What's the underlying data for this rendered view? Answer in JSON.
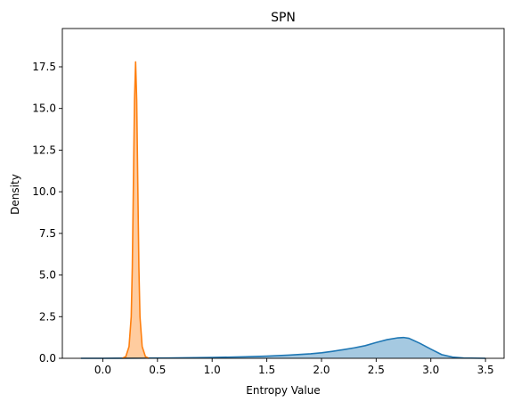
{
  "chart_data": {
    "type": "area",
    "title": "SPN",
    "xlabel": "Entropy Value",
    "ylabel": "Density",
    "xlim": [
      -0.37,
      3.67
    ],
    "ylim": [
      0,
      19.8
    ],
    "xticks": [
      0.0,
      0.5,
      1.0,
      1.5,
      2.0,
      2.5,
      3.0,
      3.5
    ],
    "xtick_labels": [
      "0.0",
      "0.5",
      "1.0",
      "1.5",
      "2.0",
      "2.5",
      "3.0",
      "3.5"
    ],
    "yticks": [
      0.0,
      2.5,
      5.0,
      7.5,
      10.0,
      12.5,
      15.0,
      17.5
    ],
    "ytick_labels": [
      "0.0",
      "2.5",
      "5.0",
      "7.5",
      "10.0",
      "12.5",
      "15.0",
      "17.5"
    ],
    "grid": false,
    "legend": "none",
    "series": [
      {
        "color": "#1f77b4",
        "fill_color": "#1f77b4",
        "kind": "kde-with-hist",
        "x": [
          -0.2,
          0.0,
          0.3,
          0.6,
          1.0,
          1.3,
          1.5,
          1.7,
          1.9,
          2.0,
          2.1,
          2.2,
          2.3,
          2.4,
          2.5,
          2.6,
          2.7,
          2.75,
          2.8,
          2.9,
          3.0,
          3.1,
          3.2,
          3.3,
          3.5
        ],
        "y": [
          0.0,
          0.0,
          0.01,
          0.02,
          0.05,
          0.09,
          0.13,
          0.19,
          0.27,
          0.33,
          0.42,
          0.52,
          0.63,
          0.76,
          0.95,
          1.12,
          1.23,
          1.25,
          1.2,
          0.9,
          0.55,
          0.22,
          0.07,
          0.02,
          0.0
        ]
      },
      {
        "color": "#ff7f0e",
        "fill_color": "#ff7f0e",
        "kind": "kde-with-hist",
        "x": [
          0.18,
          0.21,
          0.24,
          0.26,
          0.27,
          0.28,
          0.29,
          0.3,
          0.31,
          0.32,
          0.33,
          0.34,
          0.36,
          0.39,
          0.42
        ],
        "y": [
          0.0,
          0.1,
          0.7,
          2.5,
          5.5,
          10.5,
          15.5,
          17.8,
          15.5,
          10.5,
          5.5,
          2.5,
          0.7,
          0.1,
          0.0
        ]
      }
    ]
  }
}
